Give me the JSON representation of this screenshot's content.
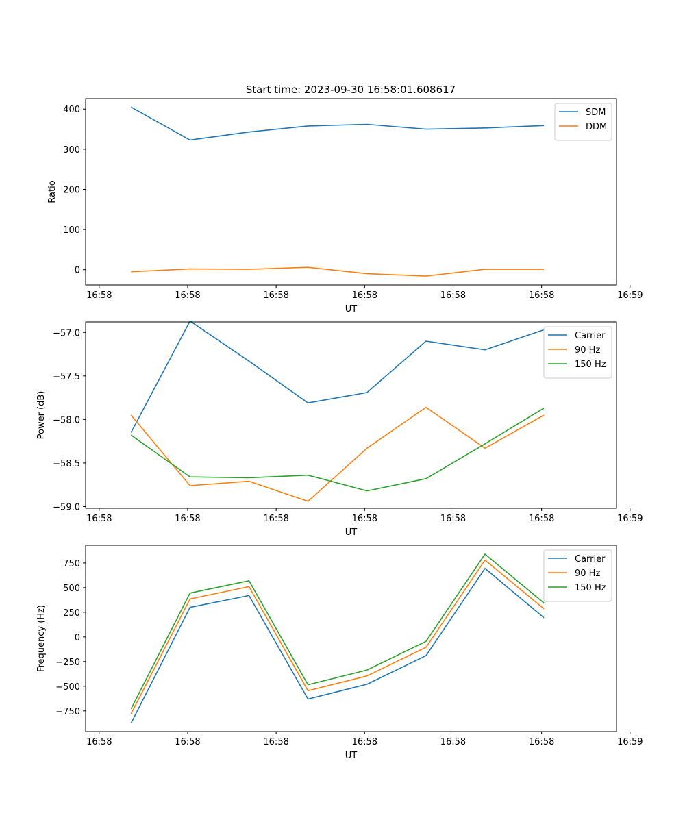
{
  "figure": {
    "title": "Start time: 2023-09-30 16:58:01.608617"
  },
  "colors": {
    "blue": "#1f77b4",
    "orange": "#ff7f0e",
    "green": "#2ca02c"
  },
  "chart_data": [
    {
      "type": "line",
      "title": "Start time: 2023-09-30 16:58:01.608617",
      "xlabel": "UT",
      "ylabel": "Ratio",
      "x": [
        1,
        2,
        3,
        4,
        5,
        6,
        7,
        8
      ],
      "xlim": [
        0.23,
        9.23
      ],
      "xticks": [
        0.46,
        1.96,
        3.46,
        4.96,
        6.46,
        7.96,
        9.46
      ],
      "xtick_labels": [
        "16:58",
        "16:58",
        "16:58",
        "16:58",
        "16:58",
        "16:58",
        "16:59"
      ],
      "ylim": [
        -38,
        426
      ],
      "yticks": [
        0,
        100,
        200,
        300,
        400
      ],
      "ytick_labels": [
        "0",
        "100",
        "200",
        "300",
        "400"
      ],
      "legend": "top-right",
      "series": [
        {
          "name": "SDM",
          "color": "#1f77b4",
          "values": [
            405,
            323,
            343,
            358,
            362,
            350,
            353,
            359
          ]
        },
        {
          "name": "DDM",
          "color": "#ff7f0e",
          "values": [
            -5,
            2,
            1,
            6,
            -10,
            -16,
            1,
            1
          ]
        }
      ]
    },
    {
      "type": "line",
      "title": "",
      "xlabel": "UT",
      "ylabel": "Power (dB)",
      "x": [
        1,
        2,
        3,
        4,
        5,
        6,
        7,
        8
      ],
      "xlim": [
        0.23,
        9.23
      ],
      "xticks": [
        0.46,
        1.96,
        3.46,
        4.96,
        6.46,
        7.96,
        9.46
      ],
      "xtick_labels": [
        "16:58",
        "16:58",
        "16:58",
        "16:58",
        "16:58",
        "16:58",
        "16:59"
      ],
      "ylim": [
        -59.02,
        -56.88
      ],
      "yticks": [
        -59.0,
        -58.5,
        -58.0,
        -57.5,
        -57.0
      ],
      "ytick_labels": [
        "−59.0",
        "−58.5",
        "−58.0",
        "−57.5",
        "−57.0"
      ],
      "legend": "top-right",
      "series": [
        {
          "name": "Carrier",
          "color": "#1f77b4",
          "values": [
            -58.15,
            -56.87,
            -57.33,
            -57.81,
            -57.69,
            -57.1,
            -57.2,
            -56.97
          ]
        },
        {
          "name": "90 Hz",
          "color": "#ff7f0e",
          "values": [
            -57.95,
            -58.76,
            -58.71,
            -58.94,
            -58.33,
            -57.86,
            -58.33,
            -57.95
          ]
        },
        {
          "name": "150 Hz",
          "color": "#2ca02c",
          "values": [
            -58.18,
            -58.66,
            -58.67,
            -58.64,
            -58.82,
            -58.68,
            -58.28,
            -57.87
          ]
        }
      ]
    },
    {
      "type": "line",
      "title": "",
      "xlabel": "UT",
      "ylabel": "Frequency (Hz)",
      "x": [
        1,
        2,
        3,
        4,
        5,
        6,
        7,
        8
      ],
      "xlim": [
        0.23,
        9.23
      ],
      "xticks": [
        0.46,
        1.96,
        3.46,
        4.96,
        6.46,
        7.96,
        9.46
      ],
      "xtick_labels": [
        "16:58",
        "16:58",
        "16:58",
        "16:58",
        "16:58",
        "16:58",
        "16:59"
      ],
      "ylim": [
        -960,
        930
      ],
      "yticks": [
        -750,
        -500,
        -250,
        0,
        250,
        500,
        750
      ],
      "ytick_labels": [
        "−750",
        "−500",
        "−250",
        "0",
        "250",
        "500",
        "750"
      ],
      "legend": "top-right",
      "series": [
        {
          "name": "Carrier",
          "color": "#1f77b4",
          "values": [
            -875,
            300,
            420,
            -630,
            -480,
            -190,
            695,
            195
          ]
        },
        {
          "name": "90 Hz",
          "color": "#ff7f0e",
          "values": [
            -780,
            385,
            510,
            -545,
            -395,
            -105,
            780,
            285
          ]
        },
        {
          "name": "150 Hz",
          "color": "#2ca02c",
          "values": [
            -730,
            445,
            570,
            -485,
            -335,
            -45,
            840,
            345
          ]
        }
      ]
    }
  ]
}
